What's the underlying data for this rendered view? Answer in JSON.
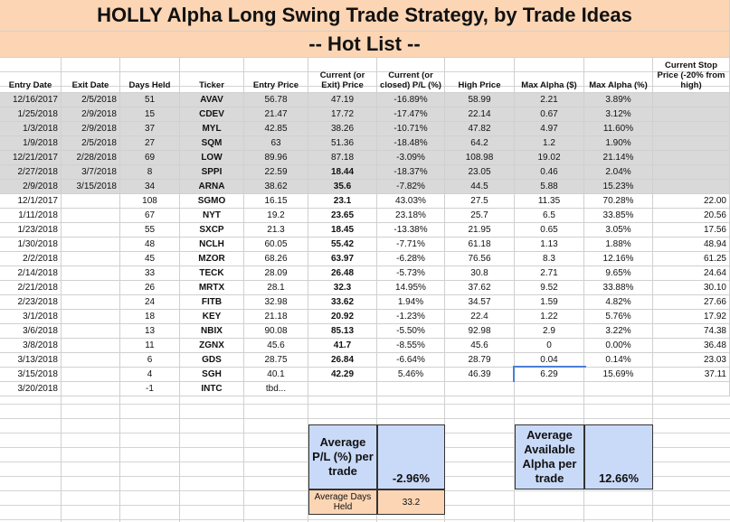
{
  "header": {
    "title": "HOLLY Alpha Long Swing Trade Strategy, by Trade Ideas",
    "subtitle": "-- Hot List --"
  },
  "table": {
    "columns": [
      "Entry Date",
      "Exit Date",
      "Days Held",
      "Ticker",
      "Entry Price",
      "Current (or Exit) Price",
      "Current (or closed) P/L (%)",
      "High Price",
      "Max Alpha ($)",
      "Max Alpha (%)",
      "Current Stop Price (-20% from high)"
    ],
    "closed_trades": [
      [
        "12/16/2017",
        "2/5/2018",
        "51",
        "AVAV",
        "56.78",
        "47.19",
        "-16.89%",
        "58.99",
        "2.21",
        "3.89%"
      ],
      [
        "1/25/2018",
        "2/9/2018",
        "15",
        "CDEV",
        "21.47",
        "17.72",
        "-17.47%",
        "22.14",
        "0.67",
        "3.12%"
      ],
      [
        "1/3/2018",
        "2/9/2018",
        "37",
        "MYL",
        "42.85",
        "38.26",
        "-10.71%",
        "47.82",
        "4.97",
        "11.60%"
      ],
      [
        "1/9/2018",
        "2/5/2018",
        "27",
        "SQM",
        "63",
        "51.36",
        "-18.48%",
        "64.2",
        "1.2",
        "1.90%"
      ],
      [
        "12/21/2017",
        "2/28/2018",
        "69",
        "LOW",
        "89.96",
        "87.18",
        "-3.09%",
        "108.98",
        "19.02",
        "21.14%"
      ],
      [
        "2/27/2018",
        "3/7/2018",
        "8",
        "SPPI",
        "22.59",
        "18.44",
        "-18.37%",
        "23.05",
        "0.46",
        "2.04%"
      ],
      [
        "2/9/2018",
        "3/15/2018",
        "34",
        "ARNA",
        "38.62",
        "35.6",
        "-7.82%",
        "44.5",
        "5.88",
        "15.23%"
      ]
    ],
    "open_trades": [
      [
        "12/1/2017",
        null,
        "108",
        "SGMO",
        "16.15",
        "23.1",
        "43.03%",
        "27.5",
        "11.35",
        "70.28%",
        "22.00"
      ],
      [
        "1/11/2018",
        null,
        "67",
        "NYT",
        "19.2",
        "23.65",
        "23.18%",
        "25.7",
        "6.5",
        "33.85%",
        "20.56"
      ],
      [
        "1/23/2018",
        null,
        "55",
        "SXCP",
        "21.3",
        "18.45",
        "-13.38%",
        "21.95",
        "0.65",
        "3.05%",
        "17.56"
      ],
      [
        "1/30/2018",
        null,
        "48",
        "NCLH",
        "60.05",
        "55.42",
        "-7.71%",
        "61.18",
        "1.13",
        "1.88%",
        "48.94"
      ],
      [
        "2/2/2018",
        null,
        "45",
        "MZOR",
        "68.26",
        "63.97",
        "-6.28%",
        "76.56",
        "8.3",
        "12.16%",
        "61.25"
      ],
      [
        "2/14/2018",
        null,
        "33",
        "TECK",
        "28.09",
        "26.48",
        "-5.73%",
        "30.8",
        "2.71",
        "9.65%",
        "24.64"
      ],
      [
        "2/21/2018",
        null,
        "26",
        "MRTX",
        "28.1",
        "32.3",
        "14.95%",
        "37.62",
        "9.52",
        "33.88%",
        "30.10"
      ],
      [
        "2/23/2018",
        null,
        "24",
        "FITB",
        "32.98",
        "33.62",
        "1.94%",
        "34.57",
        "1.59",
        "4.82%",
        "27.66"
      ],
      [
        "3/1/2018",
        null,
        "18",
        "KEY",
        "21.18",
        "20.92",
        "-1.23%",
        "22.4",
        "1.22",
        "5.76%",
        "17.92"
      ],
      [
        "3/6/2018",
        null,
        "13",
        "NBIX",
        "90.08",
        "85.13",
        "-5.50%",
        "92.98",
        "2.9",
        "3.22%",
        "74.38"
      ],
      [
        "3/8/2018",
        null,
        "11",
        "ZGNX",
        "45.6",
        "41.7",
        "-8.55%",
        "45.6",
        "0",
        "0.00%",
        "36.48"
      ],
      [
        "3/13/2018",
        null,
        "6",
        "GDS",
        "28.75",
        "26.84",
        "-6.64%",
        "28.79",
        "0.04",
        "0.14%",
        "23.03"
      ],
      [
        "3/15/2018",
        null,
        "4",
        "SGH",
        "40.1",
        "42.29",
        "5.46%",
        "46.39",
        "6.29",
        "15.69%",
        "37.11"
      ],
      [
        "3/20/2018",
        null,
        "-1",
        "INTC",
        "tbd..."
      ]
    ]
  },
  "summary": {
    "avg_pl": {
      "label": "Average P/L (%) per trade",
      "value": "-2.96%"
    },
    "avg_days": {
      "label": "Average Days Held",
      "value": "33.2"
    },
    "avg_alpha": {
      "label": "Average Available Alpha per trade",
      "value": "12.66%"
    }
  }
}
